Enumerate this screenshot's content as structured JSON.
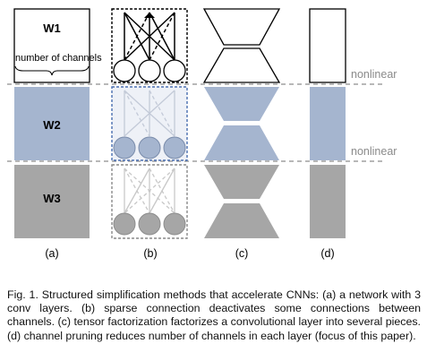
{
  "figure": {
    "panels": [
      {
        "id": "a",
        "label": "(a)",
        "blocks": [
          "W1",
          "W2",
          "W3"
        ],
        "annotation": "number of  channels"
      },
      {
        "id": "b",
        "label": "(b)"
      },
      {
        "id": "c",
        "label": "(c)"
      },
      {
        "id": "d",
        "label": "(d)"
      }
    ],
    "nonlinear_labels": [
      "nonlinear",
      "nonlinear"
    ],
    "colors": {
      "layer1": "#ffffff",
      "layer2": "#a5b5cf",
      "layer3": "#a6a6a6",
      "divider": "#a0a0a0",
      "nonlinear_text": "#8a8a8a"
    }
  },
  "caption": "Fig. 1. Structured simplification methods that accelerate CNNs: (a) a network with 3 conv layers. (b) sparse connection deactivates some connections between channels. (c) tensor factorization factorizes a convolutional layer into several pieces. (d) channel pruning reduces number of channels in each layer (focus of this paper)."
}
